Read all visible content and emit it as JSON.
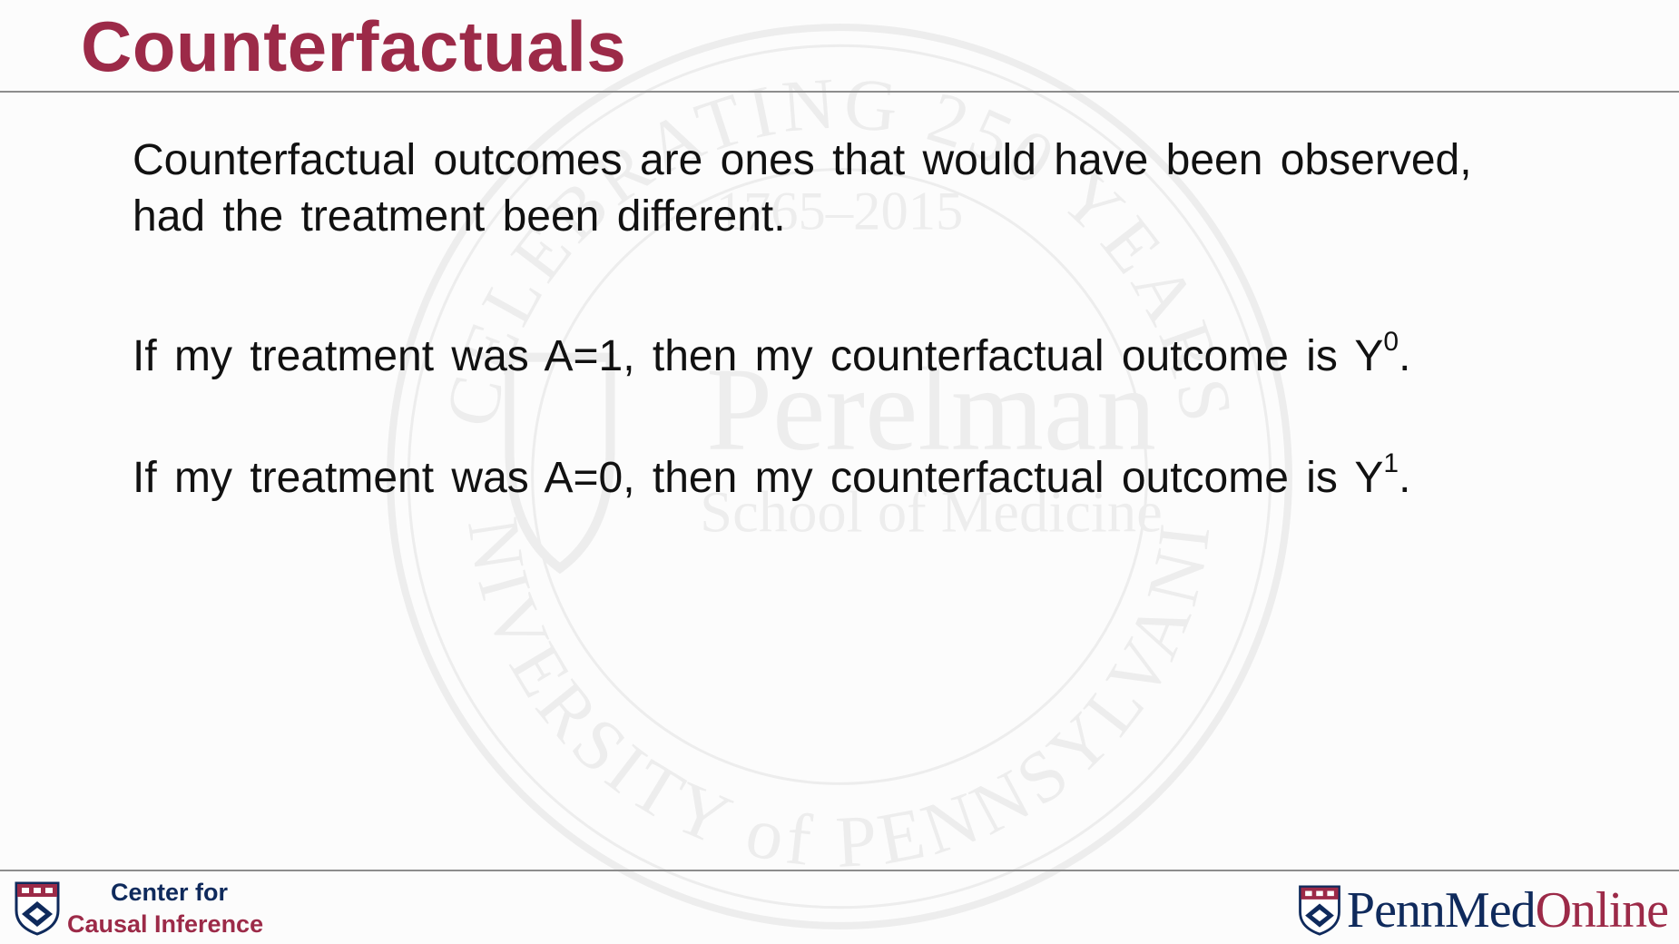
{
  "slide": {
    "title": "Counterfactuals",
    "definition": "Counterfactual outcomes are ones that would have been observed, had the treatment been different.",
    "line_a1": {
      "text": "If my treatment was A=1, then my counterfactual outcome is Y",
      "superscript": "0",
      "end": "."
    },
    "line_a0": {
      "text": "If my treatment was A=0, then my counterfactual outcome is Y",
      "superscript": "1",
      "end": "."
    }
  },
  "watermark": {
    "arc_top": "CELEBRATING 250 YEARS",
    "years": "1765–2015",
    "name_line1": "Perelman",
    "name_line2": "School of Medicine",
    "arc_bottom": "UNIVERSITY of PENNSYLVANIA"
  },
  "footer": {
    "left_line1": "Center for",
    "left_line2": "Causal Inference",
    "brand_penn": "Penn",
    "brand_med": "Med",
    "brand_online": "Online"
  },
  "colors": {
    "title": "#9c2a48",
    "brand_blue": "#0f2a5c",
    "brand_red": "#9c2a48",
    "rule": "#8d8d8d"
  }
}
